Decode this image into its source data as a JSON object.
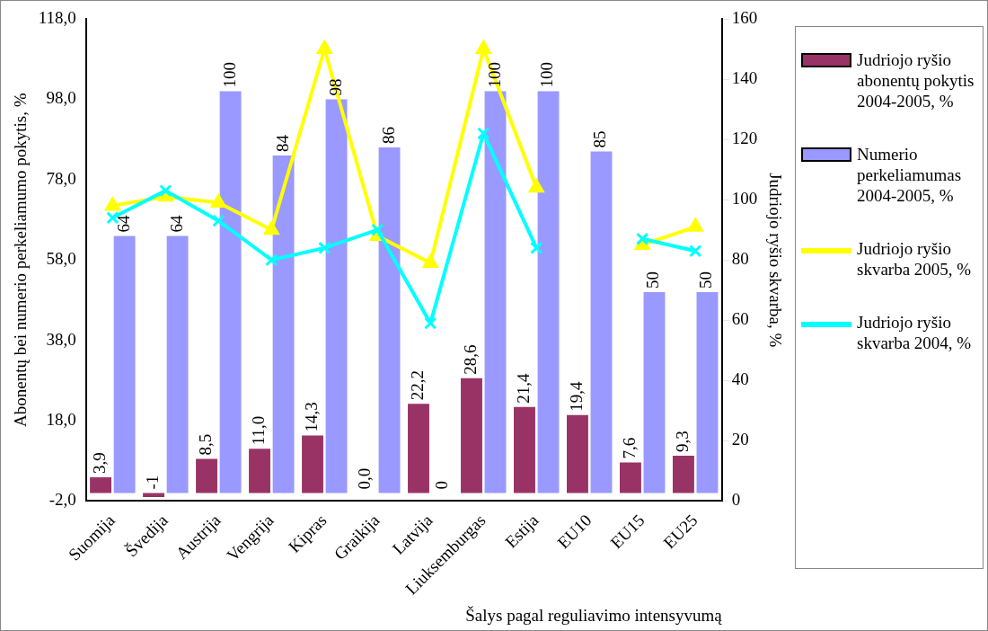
{
  "chart_data": {
    "type": "bar",
    "xlabel": "Šalys pagal reguliavimo intensyvumą",
    "ylabel": "Abonentų bei numerio perkeliamumo pokytis, %",
    "y2label": "Judriojo ryšio skvarba, %",
    "categories": [
      "Suomija",
      "Švedija",
      "Austrija",
      "Vengrija",
      "Kipras",
      "Graikija",
      "Latvija",
      "Liuksemburgas",
      "Estija",
      "EU10",
      "EU15",
      "EU25"
    ],
    "series": [
      {
        "name": "Judriojo ryšio abonentų pokytis 2004-2005, %",
        "color": "#993366",
        "values": [
          3.9,
          -1,
          8.5,
          11.0,
          14.3,
          0.0,
          22.2,
          28.6,
          21.4,
          19.4,
          7.6,
          9.3
        ],
        "value_labels": [
          "3,9",
          "-1",
          "8,5",
          "11,0",
          "14,3",
          "0,0",
          "22,2",
          "28,6",
          "21,4",
          "19,4",
          "7,6",
          "9,3"
        ]
      },
      {
        "name": "Numerio perkeliamumas 2004-2005, %",
        "color": "#9999ff",
        "values": [
          64,
          64,
          100,
          84,
          98,
          86,
          0,
          100,
          100,
          85,
          50,
          50
        ],
        "value_labels": [
          "64",
          "64",
          "100",
          "84",
          "98",
          "86",
          "0",
          "100",
          "100",
          "85",
          "50",
          "50"
        ]
      },
      {
        "name": "Judriojo ryšio skvarba 2005, %",
        "type": "line",
        "axis": "y2",
        "color": "#ffff00",
        "marker": "triangle",
        "values": [
          98,
          101,
          99,
          90,
          150,
          88,
          79,
          150,
          104,
          null,
          85,
          91
        ]
      },
      {
        "name": "Judriojo ryšio skvarba 2004, %",
        "type": "line",
        "axis": "y2",
        "color": "#00ffff",
        "marker": "cross",
        "values": [
          94,
          103,
          93,
          80,
          84,
          90,
          59,
          122,
          84,
          null,
          87,
          83
        ]
      }
    ],
    "ylim": [
      -2,
      118
    ],
    "yticks": [
      {
        "value": -2,
        "label": "-2,0"
      },
      {
        "value": 18,
        "label": "18,0"
      },
      {
        "value": 38,
        "label": "38,0"
      },
      {
        "value": 58,
        "label": "58,0"
      },
      {
        "value": 78,
        "label": "78,0"
      },
      {
        "value": 98,
        "label": "98,0"
      },
      {
        "value": 118,
        "label": "118,0"
      }
    ],
    "y2lim": [
      0,
      160
    ],
    "y2ticks": [
      0,
      20,
      40,
      60,
      80,
      100,
      120,
      140,
      160
    ],
    "legend": "right",
    "grid": false
  }
}
